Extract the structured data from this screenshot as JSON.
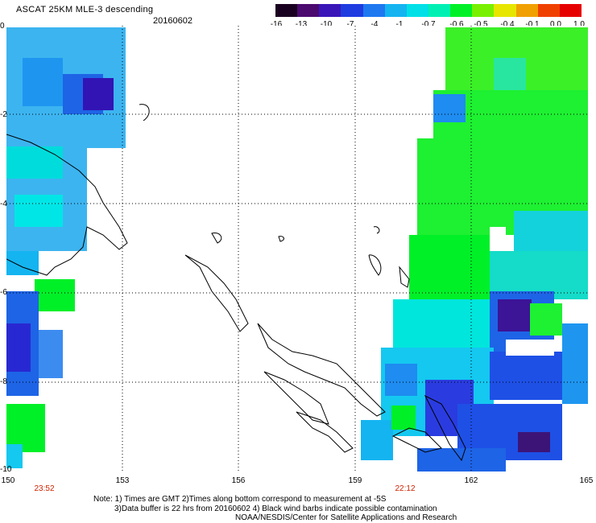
{
  "header": {
    "title": "ASCAT 25KM MLE-3 descending",
    "date": "20160602"
  },
  "colorbar": {
    "ticks": [
      "-16",
      "-13",
      "-10",
      "-7",
      "-4",
      "-1",
      "-0.7",
      "-0.6",
      "-0.5",
      "-0.4",
      "-0.1",
      "0.0",
      "1.0"
    ],
    "colors": [
      "#1a0020",
      "#4b0a6e",
      "#3a16b8",
      "#1e3ce0",
      "#1e78f0",
      "#14b4f0",
      "#00e0e6",
      "#00f0b4",
      "#00f028",
      "#78f000",
      "#e6e600",
      "#f0a000",
      "#f04000",
      "#e60000"
    ]
  },
  "axes": {
    "x_ticks": [
      "150",
      "153",
      "156",
      "159",
      "162",
      "165"
    ],
    "y_ticks": [
      "0",
      "-2",
      "-4",
      "-6",
      "-8",
      "-10"
    ],
    "times": [
      "23:52",
      "22:12"
    ]
  },
  "notes": [
    "Note: 1) Times are GMT 2)Times along bottom correspond to measurement at -5S",
    "3)Data buffer is 22 hrs from 20160602 4) Black wind barbs indicate possible contamination",
    "NOAA/NESDIS/Center for Satellite Applications and Research"
  ]
}
